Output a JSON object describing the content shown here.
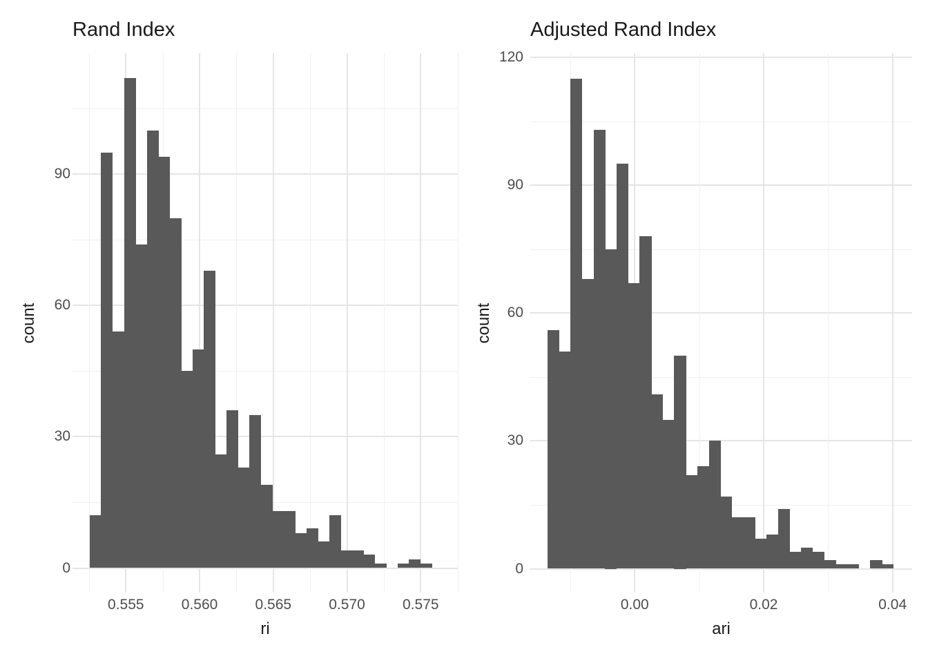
{
  "figure": {
    "background": "#ffffff",
    "styles": {
      "bar_color": "#595959",
      "grid_major_color": "#e5e5e5",
      "grid_minor_color": "#f0f0f0",
      "tick_text_color": "#4d4d4d",
      "title_text_color": "#1a1a1a"
    }
  },
  "chart_data": [
    {
      "type": "bar",
      "subtype": "histogram",
      "title": "Rand Index",
      "xlabel": "ri",
      "ylabel": "count",
      "legend": "none",
      "grid": "on",
      "bar_color": "#595959",
      "bin_start": 0.55255,
      "bin_width": 0.000773,
      "counts": [
        12,
        95,
        54,
        112,
        74,
        100,
        94,
        80,
        45,
        50,
        68,
        26,
        36,
        23,
        35,
        19,
        13,
        13,
        8,
        9,
        6,
        12,
        4,
        4,
        3,
        1,
        0,
        1,
        2,
        1
      ],
      "xlim": [
        0.5514,
        0.5769
      ],
      "ylim": [
        0,
        117
      ],
      "x_ticks": [
        {
          "value": 0.555,
          "label": "0.555"
        },
        {
          "value": 0.56,
          "label": "0.560"
        },
        {
          "value": 0.565,
          "label": "0.565"
        },
        {
          "value": 0.57,
          "label": "0.570"
        },
        {
          "value": 0.575,
          "label": "0.575"
        }
      ],
      "x_minor": [
        0.5525,
        0.5575,
        0.5625,
        0.5675,
        0.5725,
        0.5775
      ],
      "y_ticks": [
        {
          "value": 0,
          "label": "0"
        },
        {
          "value": 30,
          "label": "30"
        },
        {
          "value": 60,
          "label": "60"
        },
        {
          "value": 90,
          "label": "90"
        }
      ],
      "y_minor": [
        15,
        45,
        75,
        105
      ]
    },
    {
      "type": "bar",
      "subtype": "histogram",
      "title": "Adjusted Rand Index",
      "xlabel": "ari",
      "ylabel": "count",
      "legend": "none",
      "grid": "on",
      "bar_color": "#595959",
      "bin_start": -0.01356,
      "bin_width": 0.001789,
      "counts": [
        56,
        51,
        115,
        68,
        103,
        75,
        95,
        67,
        78,
        41,
        35,
        50,
        22,
        24,
        30,
        17,
        12,
        12,
        7,
        8,
        14,
        4,
        5,
        4,
        2,
        1,
        1,
        0,
        2,
        1
      ],
      "xlim": [
        -0.0162,
        0.0428
      ],
      "ylim": [
        0,
        120
      ],
      "x_ticks": [
        {
          "value": 0.0,
          "label": "0.00"
        },
        {
          "value": 0.02,
          "label": "0.02"
        },
        {
          "value": 0.04,
          "label": "0.04"
        }
      ],
      "x_minor": [
        -0.01,
        0.01,
        0.03
      ],
      "y_ticks": [
        {
          "value": 0,
          "label": "0"
        },
        {
          "value": 30,
          "label": "30"
        },
        {
          "value": 60,
          "label": "60"
        },
        {
          "value": 90,
          "label": "90"
        },
        {
          "value": 120,
          "label": "120"
        }
      ],
      "y_minor": [
        15,
        45,
        75,
        105
      ]
    }
  ]
}
